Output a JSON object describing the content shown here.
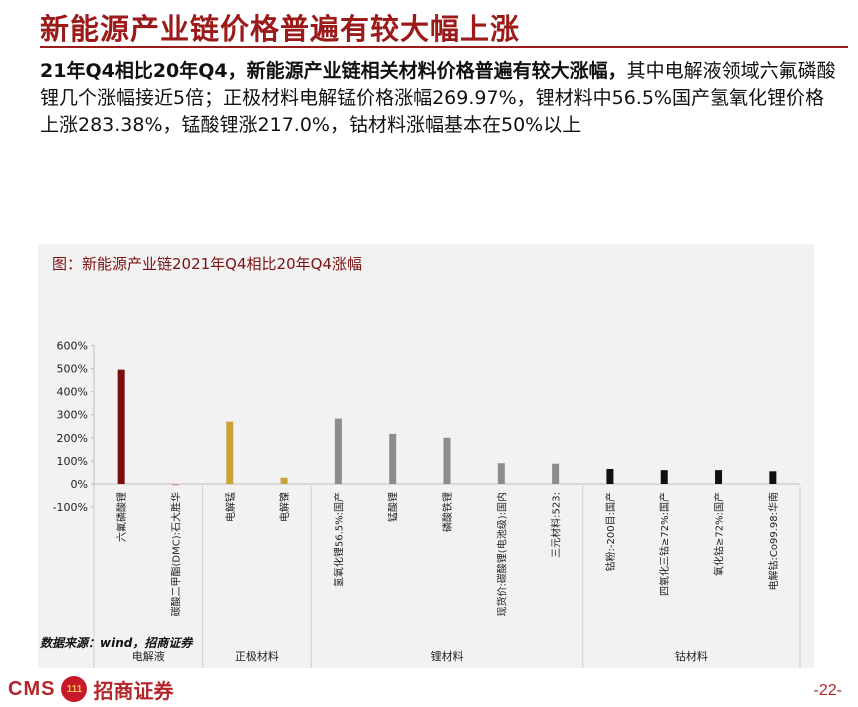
{
  "header": {
    "title": "新能源产业链价格普遍有较大幅上涨"
  },
  "summary": {
    "bold": "21年Q4相比20年Q4，新能源产业链相关材料价格普遍有较大涨幅，",
    "rest": "其中电解液领域六氟磷酸锂几个涨幅接近5倍；正极材料电解锰价格涨幅269.97%，锂材料中56.5%国产氢氧化锂价格上涨283.38%，锰酸锂涨217.0%，钴材料涨幅基本在50%以上"
  },
  "chart_data": {
    "type": "bar",
    "title": "图：新能源产业链2021年Q4相比20年Q4涨幅",
    "ylim": [
      -100,
      600
    ],
    "yticks": [
      "-100%",
      "0%",
      "100%",
      "200%",
      "300%",
      "400%",
      "500%",
      "600%"
    ],
    "ytick_values": [
      -100,
      0,
      100,
      200,
      300,
      400,
      500,
      600
    ],
    "categories": [
      "六氟磷酸锂",
      "碳酸二甲酯(DMC):石大胜华",
      "电解锰",
      "电解镍",
      "氢氧化锂56.5%:国产",
      "锰酸锂",
      "磷酸铁锂",
      "现货价:碳酸锂(电池级):国内",
      "三元材料:523:",
      "钴粉:-200目:国产",
      "四氧化三钴≥72%:国产",
      "氧化钴≥72%:国产",
      "电解钴:Co99.98:华南"
    ],
    "values": [
      495,
      -5,
      270,
      27,
      283,
      217,
      200,
      90,
      88,
      65,
      60,
      60,
      55
    ],
    "colors": [
      "#7a0c0c",
      "#d9a0a8",
      "#c9a23a",
      "#c9a23a",
      "#8c8c8c",
      "#8c8c8c",
      "#8c8c8c",
      "#8c8c8c",
      "#8c8c8c",
      "#111111",
      "#111111",
      "#111111",
      "#111111"
    ],
    "groups": [
      {
        "label": "电解液",
        "count": 2
      },
      {
        "label": "正极材料",
        "count": 2
      },
      {
        "label": "锂材料",
        "count": 5
      },
      {
        "label": "钴材料",
        "count": 4
      }
    ],
    "grid": false,
    "legend": "none"
  },
  "footer": {
    "source": "数据来源：wind，招商证券",
    "logo_latin": "CMS",
    "logo_badge": "111",
    "logo_cn": "招商证券",
    "page": "-22-"
  }
}
